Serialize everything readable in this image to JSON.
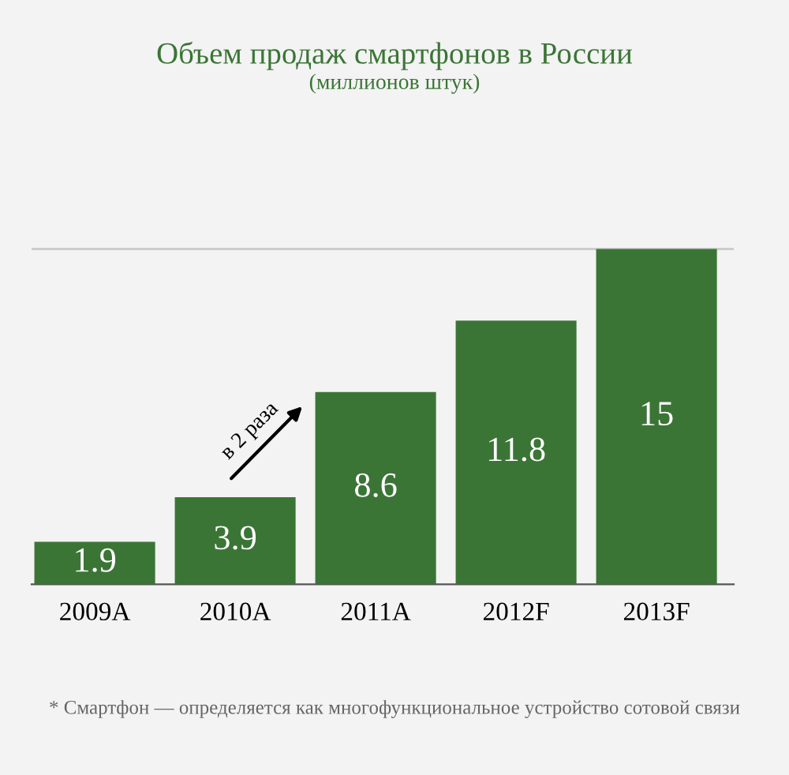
{
  "chart_data": {
    "type": "bar",
    "title": "Объем продаж смартфонов в России",
    "subtitle": "(миллионов штук)",
    "categories": [
      "2009A",
      "2010A",
      "2011A",
      "2012F",
      "2013F"
    ],
    "values": [
      1.9,
      3.9,
      8.6,
      11.8,
      15
    ],
    "color": "#3b7536",
    "data_labels": true,
    "ref_lines": [
      {
        "axis": "y",
        "value": 15,
        "color": "#cccccc"
      }
    ],
    "tick_labels": "x",
    "annotations": [
      "в 2 раза",
      "* Смартфон — определяется как многофункциональное устройство сотовой связи"
    ]
  }
}
